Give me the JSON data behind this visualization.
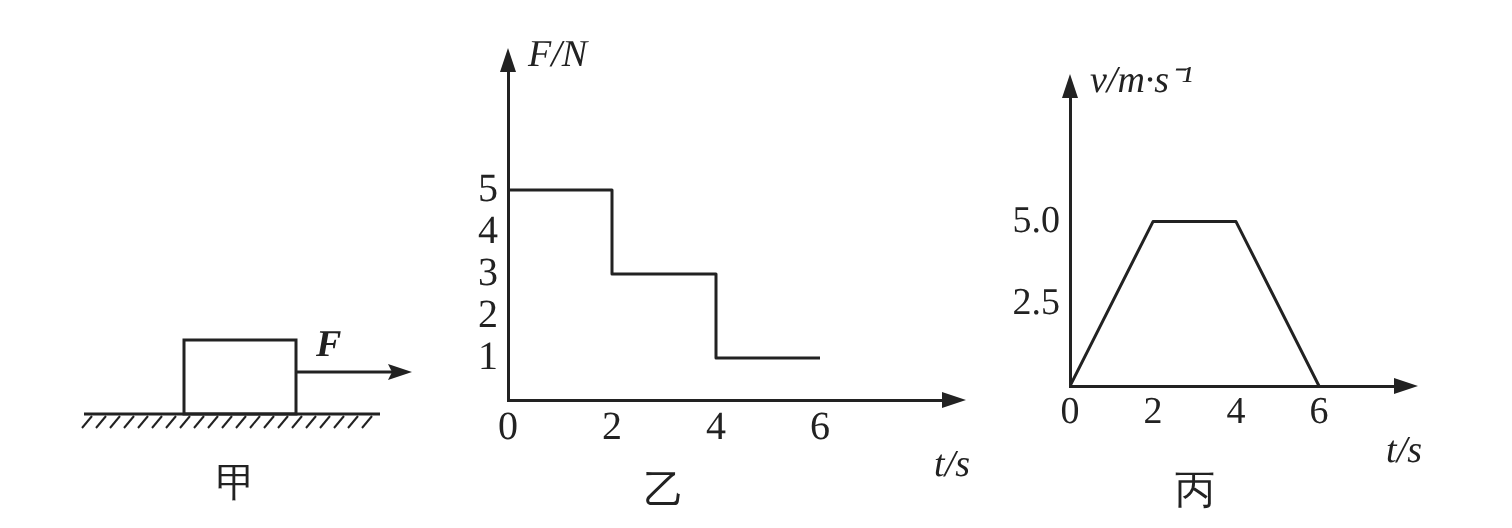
{
  "chart_data": [
    {
      "type": "other",
      "annotations": [
        "F",
        "甲"
      ]
    },
    {
      "type": "step",
      "x": [
        0,
        2,
        4,
        6
      ],
      "values": [
        5,
        3,
        1,
        1
      ],
      "color": "#222222",
      "ylabel": "F/N",
      "xlabel": "t/s",
      "annotations": [
        "乙"
      ],
      "xlim": [
        0,
        8.5
      ],
      "ylim": [
        0,
        8
      ],
      "xticks": [
        0,
        2,
        4,
        6
      ],
      "yticks": [
        1,
        2,
        3,
        4,
        5
      ]
    },
    {
      "type": "line",
      "x": [
        0,
        2,
        4,
        6
      ],
      "values": [
        0,
        5,
        5,
        0
      ],
      "color": "#222222",
      "ylabel": "v/m·s⁻¹",
      "xlabel": "t/s",
      "annotations": [
        "丙"
      ],
      "xlim": [
        0,
        8
      ],
      "ylim": [
        0,
        9
      ],
      "xticks": [
        0,
        2,
        4,
        6
      ],
      "yticks": [
        {
          "value": 2.5,
          "label": "2.5"
        },
        {
          "value": 5,
          "label": "5.0"
        }
      ]
    }
  ]
}
